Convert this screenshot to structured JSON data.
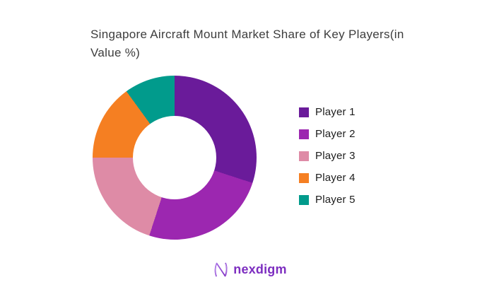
{
  "page": {
    "background_color": "#ffffff"
  },
  "title": {
    "text": "Singapore Aircraft Mount Market Share of Key Players(in Value %)"
  },
  "chart_data": {
    "type": "pie",
    "subtype": "donut",
    "title": "Singapore Aircraft Mount Market Share of Key Players(in Value %)",
    "categories": [
      "Player 1",
      "Player 2",
      "Player 3",
      "Player 4",
      "Player 5"
    ],
    "values": [
      30,
      25,
      20,
      15,
      10
    ],
    "unit": "percent of value",
    "colors": [
      "#6A1B9A",
      "#9C27B0",
      "#DE8BA6",
      "#F57F22",
      "#019B8C"
    ],
    "start_angle_deg": 0,
    "direction": "clockwise",
    "inner_radius_ratio": 0.51,
    "legend_position": "right",
    "data_labels_shown": false
  },
  "legend": {
    "items": [
      {
        "label": "Player 1",
        "color": "#6A1B9A"
      },
      {
        "label": "Player 2",
        "color": "#9C27B0"
      },
      {
        "label": "Player 3",
        "color": "#DE8BA6"
      },
      {
        "label": "Player 4",
        "color": "#F57F22"
      },
      {
        "label": "Player 5",
        "color": "#019B8C"
      }
    ]
  },
  "logo": {
    "text": "nexdigm",
    "text_color": "#7d2ec0",
    "icon": "nexdigm-n-wave-icon",
    "icon_gradient": [
      "#a56ce6",
      "#7f2dc1"
    ]
  }
}
